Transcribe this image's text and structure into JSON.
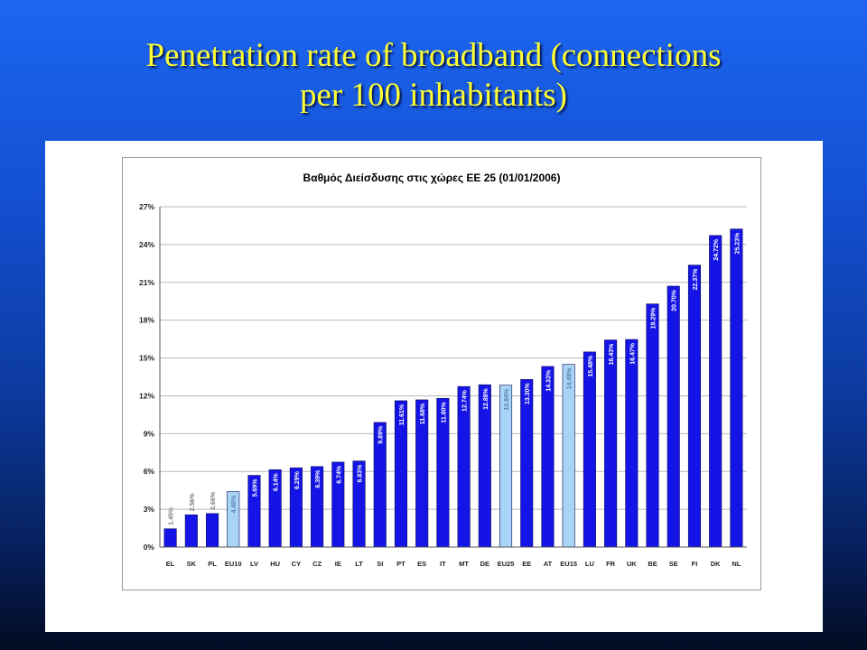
{
  "slide": {
    "title_line1": "Penetration rate of broadband (connections",
    "title_line2": "per 100 inhabitants)"
  },
  "colors": {
    "bar_country": "#1414e6",
    "bar_aggregate": "#a8d4f6",
    "title_text": "#ffff33"
  },
  "chart_data": {
    "type": "bar",
    "title": "Βαθμός Διείσδυσης στις χώρες ΕΕ 25 (01/01/2006)",
    "xlabel": "",
    "ylabel": "",
    "ylim": [
      0,
      27
    ],
    "yticks": [
      "0%",
      "3%",
      "6%",
      "9%",
      "12%",
      "15%",
      "18%",
      "21%",
      "24%",
      "27%"
    ],
    "grid": true,
    "categories": [
      "EL",
      "SK",
      "PL",
      "EU10",
      "LV",
      "HU",
      "CY",
      "CZ",
      "IE",
      "LT",
      "SI",
      "PT",
      "ES",
      "IT",
      "MT",
      "DE",
      "EU25",
      "EE",
      "AT",
      "EU15",
      "LU",
      "FR",
      "UK",
      "BE",
      "SE",
      "FI",
      "DK",
      "NL"
    ],
    "values": [
      1.45,
      2.56,
      2.66,
      4.4,
      5.69,
      6.14,
      6.29,
      6.39,
      6.74,
      6.83,
      9.89,
      11.61,
      11.68,
      11.8,
      12.74,
      12.88,
      12.84,
      13.3,
      14.33,
      14.49,
      15.48,
      16.43,
      16.47,
      19.29,
      20.7,
      22.37,
      24.72,
      25.23
    ],
    "labels": [
      "1.45%",
      "2.56%",
      "2.66%",
      "4.40%",
      "5.69%",
      "6.14%",
      "6.29%",
      "6.39%",
      "6.74%",
      "6.83%",
      "9.89%",
      "11.61%",
      "11.68%",
      "11.80%",
      "12.74%",
      "12.88%",
      "12.84%",
      "13.30%",
      "14.33%",
      "14.49%",
      "15.48%",
      "16.43%",
      "16.47%",
      "19.29%",
      "20.70%",
      "22.37%",
      "24.72%",
      "25.23%"
    ],
    "aggregate": [
      false,
      false,
      false,
      true,
      false,
      false,
      false,
      false,
      false,
      false,
      false,
      false,
      false,
      false,
      false,
      false,
      true,
      false,
      false,
      true,
      false,
      false,
      false,
      false,
      false,
      false,
      false,
      false
    ]
  }
}
